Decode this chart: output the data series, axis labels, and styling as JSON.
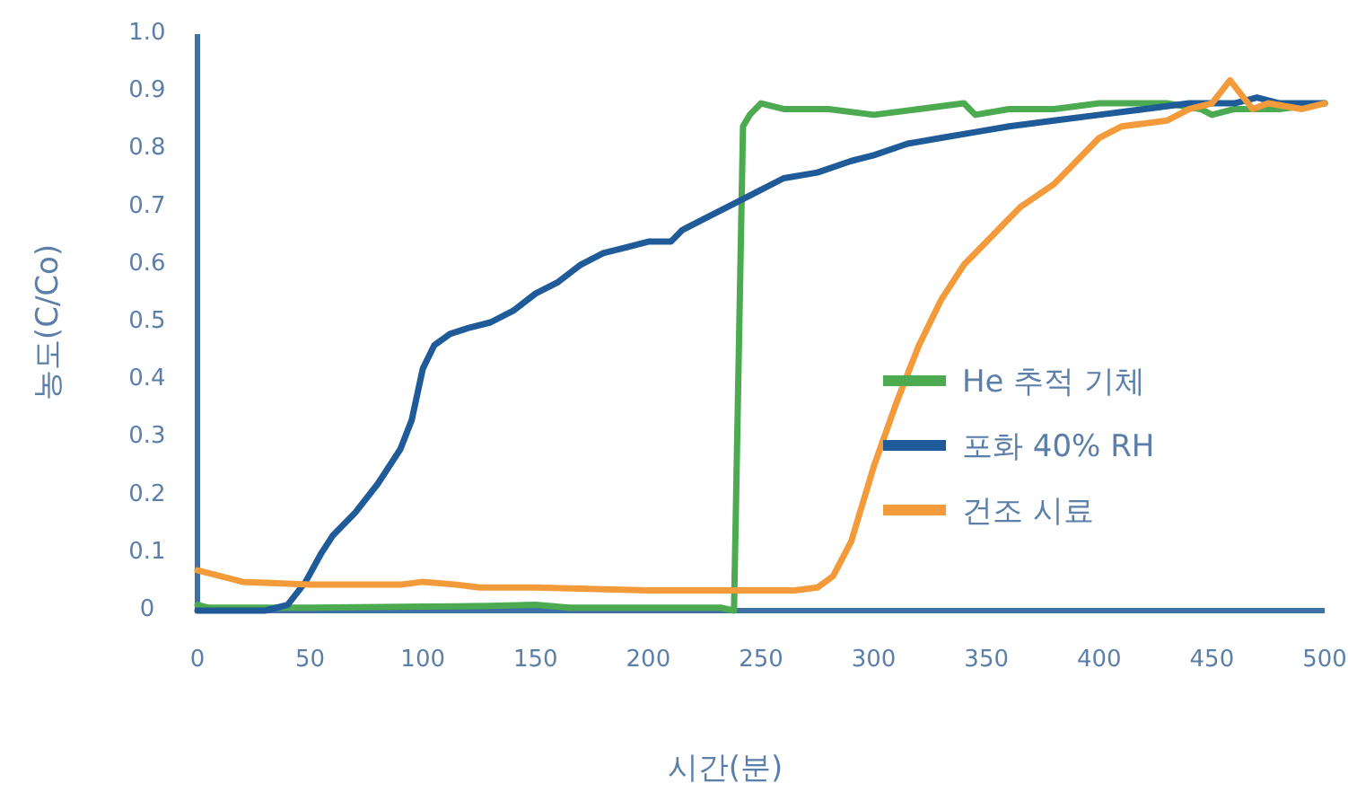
{
  "chart_data": {
    "type": "line",
    "xlabel": "시간(분)",
    "ylabel": "농도(C/Co)",
    "xlim": [
      0,
      500
    ],
    "ylim": [
      0,
      1
    ],
    "xticks": [
      0,
      50,
      100,
      150,
      200,
      250,
      300,
      350,
      400,
      450,
      500
    ],
    "yticks": [
      0,
      0.1,
      0.2,
      0.3,
      0.4,
      0.5,
      0.6,
      0.7,
      0.8,
      0.9,
      {
        "value": 1,
        "label": "1.0"
      }
    ],
    "grid": false,
    "legend": "right",
    "marker": "none",
    "line_style": "solid",
    "series": [
      {
        "name": "He 추적 기체",
        "color": "#4caa50",
        "x": [
          0,
          5,
          50,
          100,
          130,
          150,
          165,
          200,
          225,
          232,
          238,
          242,
          245,
          250,
          260,
          280,
          300,
          320,
          340,
          345,
          360,
          380,
          400,
          430,
          445,
          450,
          460,
          480,
          500
        ],
        "values": [
          0.01,
          0.005,
          0.005,
          0.007,
          0.008,
          0.01,
          0.005,
          0.005,
          0.005,
          0.005,
          0,
          0.84,
          0.86,
          0.88,
          0.87,
          0.87,
          0.86,
          0.87,
          0.88,
          0.86,
          0.87,
          0.87,
          0.88,
          0.88,
          0.87,
          0.86,
          0.87,
          0.87,
          0.88
        ]
      },
      {
        "name": "포화 40% RH",
        "color": "#1f5b99",
        "x": [
          0,
          30,
          40,
          48,
          55,
          60,
          70,
          80,
          90,
          95,
          100,
          105,
          112,
          120,
          130,
          140,
          150,
          160,
          170,
          180,
          190,
          200,
          210,
          215,
          225,
          235,
          250,
          260,
          275,
          290,
          300,
          315,
          330,
          345,
          360,
          380,
          400,
          420,
          440,
          460,
          470,
          480,
          490,
          500
        ],
        "values": [
          0,
          0,
          0.01,
          0.05,
          0.1,
          0.13,
          0.17,
          0.22,
          0.28,
          0.33,
          0.42,
          0.46,
          0.48,
          0.49,
          0.5,
          0.52,
          0.55,
          0.57,
          0.6,
          0.62,
          0.63,
          0.64,
          0.64,
          0.66,
          0.68,
          0.7,
          0.73,
          0.75,
          0.76,
          0.78,
          0.79,
          0.81,
          0.82,
          0.83,
          0.84,
          0.85,
          0.86,
          0.87,
          0.88,
          0.88,
          0.89,
          0.88,
          0.88,
          0.88
        ]
      },
      {
        "name": "건조 시료",
        "color": "#f39a3a",
        "x": [
          0,
          20,
          50,
          90,
          100,
          115,
          125,
          150,
          200,
          240,
          265,
          275,
          282,
          290,
          300,
          310,
          320,
          330,
          340,
          345,
          355,
          365,
          380,
          390,
          400,
          410,
          430,
          440,
          450,
          458,
          462,
          468,
          475,
          490,
          500
        ],
        "values": [
          0.07,
          0.05,
          0.045,
          0.045,
          0.05,
          0.045,
          0.04,
          0.04,
          0.035,
          0.035,
          0.035,
          0.04,
          0.06,
          0.12,
          0.25,
          0.36,
          0.46,
          0.54,
          0.6,
          0.62,
          0.66,
          0.7,
          0.74,
          0.78,
          0.82,
          0.84,
          0.85,
          0.87,
          0.88,
          0.92,
          0.9,
          0.87,
          0.88,
          0.87,
          0.88
        ]
      }
    ]
  }
}
